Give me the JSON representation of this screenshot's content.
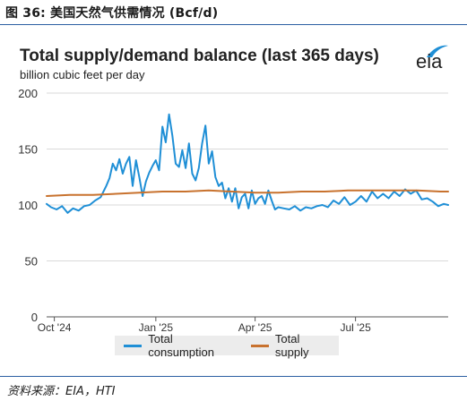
{
  "figure": {
    "caption": "图 36:  美国天然气供需情况 (Bcf/d)",
    "source": "资料来源：EIA，HTI"
  },
  "logo": {
    "text": "eia",
    "name": "eia-logo"
  },
  "colors": {
    "consumption": "#1f8fd6",
    "supply": "#c8722e",
    "rule": "#2c5fa3",
    "legend_bg": "#ececec"
  },
  "chart_data": {
    "type": "line",
    "title": "Total supply/demand balance (last 365 days)",
    "subtitle": "billion cubic feet per day",
    "xlabel": "",
    "ylabel": "",
    "ylim": [
      0,
      200
    ],
    "yticks": [
      0,
      50,
      100,
      150,
      200
    ],
    "xlim": [
      "2024-09-24",
      "2025-09-23"
    ],
    "xticks": [
      {
        "label": "Oct '24",
        "date": "2024-10-01"
      },
      {
        "label": "Jan '25",
        "date": "2025-01-01"
      },
      {
        "label": "Apr '25",
        "date": "2025-04-01"
      },
      {
        "label": "Jul '25",
        "date": "2025-07-01"
      }
    ],
    "legend_position": "bottom",
    "grid": "horizontal",
    "series": [
      {
        "name": "Total consumption",
        "dates": [
          "2024-09-24",
          "2024-09-28",
          "2024-10-03",
          "2024-10-08",
          "2024-10-13",
          "2024-10-18",
          "2024-10-23",
          "2024-10-28",
          "2024-11-02",
          "2024-11-07",
          "2024-11-12",
          "2024-11-17",
          "2024-11-20",
          "2024-11-23",
          "2024-11-26",
          "2024-11-29",
          "2024-12-02",
          "2024-12-05",
          "2024-12-08",
          "2024-12-11",
          "2024-12-14",
          "2024-12-17",
          "2024-12-20",
          "2024-12-23",
          "2024-12-26",
          "2024-12-29",
          "2025-01-01",
          "2025-01-04",
          "2025-01-07",
          "2025-01-10",
          "2025-01-13",
          "2025-01-16",
          "2025-01-19",
          "2025-01-22",
          "2025-01-25",
          "2025-01-28",
          "2025-01-31",
          "2025-02-03",
          "2025-02-06",
          "2025-02-09",
          "2025-02-12",
          "2025-02-15",
          "2025-02-18",
          "2025-02-21",
          "2025-02-24",
          "2025-02-27",
          "2025-03-02",
          "2025-03-05",
          "2025-03-08",
          "2025-03-11",
          "2025-03-14",
          "2025-03-17",
          "2025-03-20",
          "2025-03-23",
          "2025-03-26",
          "2025-03-29",
          "2025-04-01",
          "2025-04-04",
          "2025-04-07",
          "2025-04-10",
          "2025-04-13",
          "2025-04-16",
          "2025-04-19",
          "2025-04-22",
          "2025-04-27",
          "2025-05-02",
          "2025-05-07",
          "2025-05-12",
          "2025-05-17",
          "2025-05-22",
          "2025-05-27",
          "2025-06-01",
          "2025-06-06",
          "2025-06-11",
          "2025-06-16",
          "2025-06-21",
          "2025-06-26",
          "2025-07-01",
          "2025-07-06",
          "2025-07-11",
          "2025-07-16",
          "2025-07-21",
          "2025-07-26",
          "2025-07-31",
          "2025-08-05",
          "2025-08-10",
          "2025-08-15",
          "2025-08-20",
          "2025-08-25",
          "2025-08-30",
          "2025-09-04",
          "2025-09-09",
          "2025-09-14",
          "2025-09-19",
          "2025-09-23"
        ],
        "values": [
          101,
          98,
          96,
          99,
          93,
          97,
          95,
          99,
          100,
          104,
          107,
          117,
          124,
          137,
          131,
          141,
          128,
          137,
          143,
          117,
          140,
          125,
          108,
          121,
          129,
          135,
          140,
          131,
          170,
          156,
          181,
          162,
          137,
          134,
          149,
          133,
          155,
          128,
          122,
          133,
          155,
          171,
          137,
          148,
          125,
          117,
          120,
          106,
          115,
          103,
          115,
          97,
          107,
          110,
          97,
          113,
          101,
          106,
          108,
          101,
          113,
          104,
          96,
          98,
          97,
          96,
          99,
          95,
          98,
          97,
          99,
          100,
          98,
          104,
          101,
          107,
          100,
          103,
          108,
          103,
          112,
          106,
          110,
          106,
          112,
          108,
          114,
          110,
          113,
          105,
          106,
          103,
          99,
          101,
          100
        ]
      },
      {
        "name": "Total supply",
        "dates": [
          "2024-09-24",
          "2024-10-15",
          "2024-11-05",
          "2024-11-26",
          "2024-12-17",
          "2025-01-07",
          "2025-01-28",
          "2025-02-18",
          "2025-03-11",
          "2025-04-01",
          "2025-04-22",
          "2025-05-13",
          "2025-06-03",
          "2025-06-24",
          "2025-07-15",
          "2025-08-05",
          "2025-08-26",
          "2025-09-16",
          "2025-09-23"
        ],
        "values": [
          108,
          109,
          109,
          110,
          111,
          112,
          112,
          113,
          112,
          111,
          111,
          112,
          112,
          113,
          113,
          113,
          113,
          112,
          112
        ]
      }
    ]
  }
}
